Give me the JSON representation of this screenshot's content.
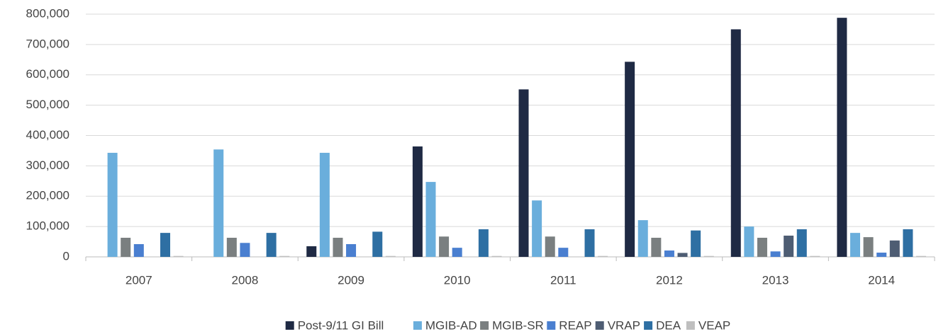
{
  "chart_data": {
    "type": "bar",
    "categories": [
      "2007",
      "2008",
      "2009",
      "2010",
      "2011",
      "2012",
      "2013",
      "2014"
    ],
    "series": [
      {
        "name": "Post-9/11 GI Bill",
        "color": "#1f2a44",
        "values": [
          null,
          null,
          35000,
          364000,
          552000,
          643000,
          750000,
          788000
        ]
      },
      {
        "name": "MGIB-AD",
        "color": "#6aaedc",
        "values": [
          343000,
          354000,
          343000,
          247000,
          186000,
          121000,
          100000,
          79000
        ]
      },
      {
        "name": "MGIB-SR",
        "color": "#7a7f80",
        "values": [
          63000,
          63000,
          63000,
          67000,
          67000,
          63000,
          63000,
          65000
        ]
      },
      {
        "name": "REAP",
        "color": "#4a7fd0",
        "values": [
          42000,
          46000,
          42000,
          30000,
          30000,
          21000,
          18000,
          14000
        ]
      },
      {
        "name": "VRAP",
        "color": "#4e5d73",
        "values": [
          null,
          null,
          null,
          null,
          null,
          13000,
          70000,
          54000
        ]
      },
      {
        "name": "DEA",
        "color": "#2e6fa3",
        "values": [
          79000,
          79000,
          83000,
          91000,
          91000,
          87000,
          91000,
          91000
        ]
      },
      {
        "name": "VEAP",
        "color": "#bfbfbf",
        "values": [
          3000,
          3000,
          3000,
          3000,
          3000,
          3000,
          3000,
          3000
        ]
      }
    ],
    "ylim": [
      0,
      800000
    ],
    "yticks": [
      0,
      {
        "value": 100000,
        "label": "100,000"
      },
      {
        "value": 200000,
        "label": "200,000"
      },
      {
        "value": 300000,
        "label": "300,000"
      },
      {
        "value": 400000,
        "label": "400,000"
      },
      {
        "value": 500000,
        "label": "500,000"
      },
      {
        "value": 600000,
        "label": "600,000"
      },
      {
        "value": 700000,
        "label": "700,000"
      },
      {
        "value": 800000,
        "label": "800,000"
      }
    ],
    "grid": true,
    "legend": "bottom"
  }
}
